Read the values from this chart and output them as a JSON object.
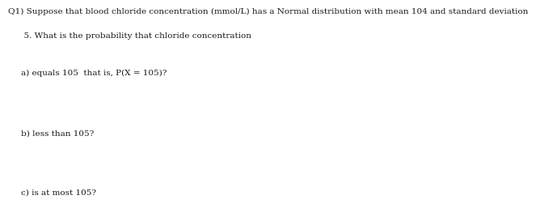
{
  "background_color": "#ffffff",
  "text_color": "#1a1a1a",
  "title_line1": "Q1) Suppose that blood chloride concentration (mmol/L) has a Normal distribution with mean 104 and standard deviation",
  "title_line2": "      5. What is the probability that chloride concentration",
  "part_a": "a) equals 105  that is, P(X = 105)?",
  "part_b": "b) less than 105?",
  "part_c": "c) is at most 105?",
  "font_size": 7.5,
  "font_family": "DejaVu Serif"
}
